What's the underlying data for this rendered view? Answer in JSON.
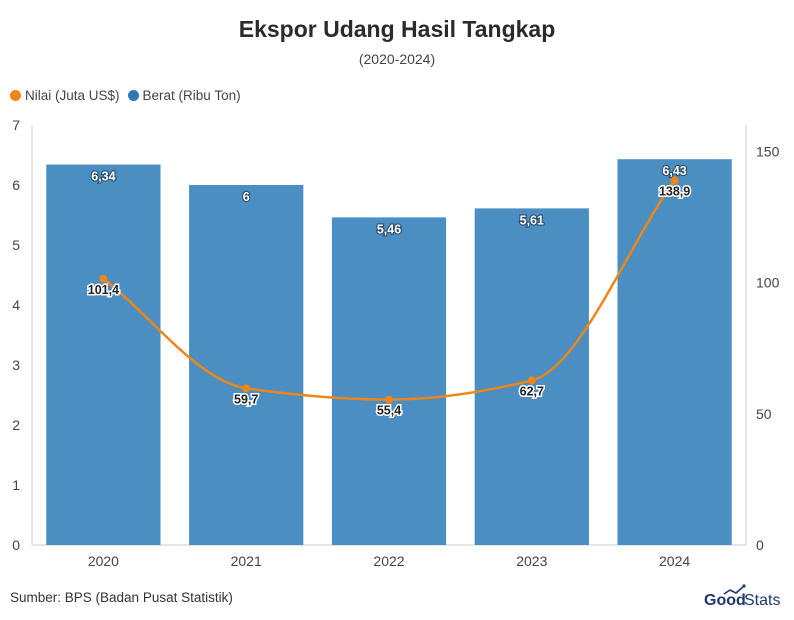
{
  "title": "Ekspor Udang Hasil Tangkap",
  "subtitle": "(2020-2024)",
  "source": "Sumber: BPS (Badan Pusat Statistik)",
  "logo": {
    "text_part1": "Good",
    "text_part2": "Stats"
  },
  "colors": {
    "bar": "#4a8ec2",
    "line": "#f08519",
    "axis_text": "#444444",
    "grid": "#d9d9d9"
  },
  "legend": [
    {
      "label": "Nilai (Juta US$)",
      "color": "#f08519"
    },
    {
      "label": "Berat (Ribu Ton)",
      "color": "#2e78b5"
    }
  ],
  "chart_data": {
    "type": "bar",
    "categories": [
      "2020",
      "2021",
      "2022",
      "2023",
      "2024"
    ],
    "series": [
      {
        "name": "Berat (Ribu Ton)",
        "type": "bar",
        "axis": "left",
        "values": [
          6.34,
          6,
          5.46,
          5.61,
          6.43
        ],
        "labels": [
          "6,34",
          "6",
          "5,46",
          "5,61",
          "6,43"
        ]
      },
      {
        "name": "Nilai (Juta US$)",
        "type": "line",
        "axis": "right",
        "values": [
          101.4,
          59.7,
          55.4,
          62.7,
          138.9
        ],
        "labels": [
          "101,4",
          "59,7",
          "55,4",
          "62,7",
          "138,9"
        ]
      }
    ],
    "y_left": {
      "min": 0,
      "max": 7,
      "ticks": [
        "0",
        "1",
        "2",
        "3",
        "4",
        "5",
        "6",
        "7"
      ]
    },
    "y_right": {
      "min": 0,
      "max": 160,
      "ticks": [
        "0",
        "50",
        "100",
        "150"
      ]
    },
    "legend_position": "top-left",
    "grid": false
  }
}
